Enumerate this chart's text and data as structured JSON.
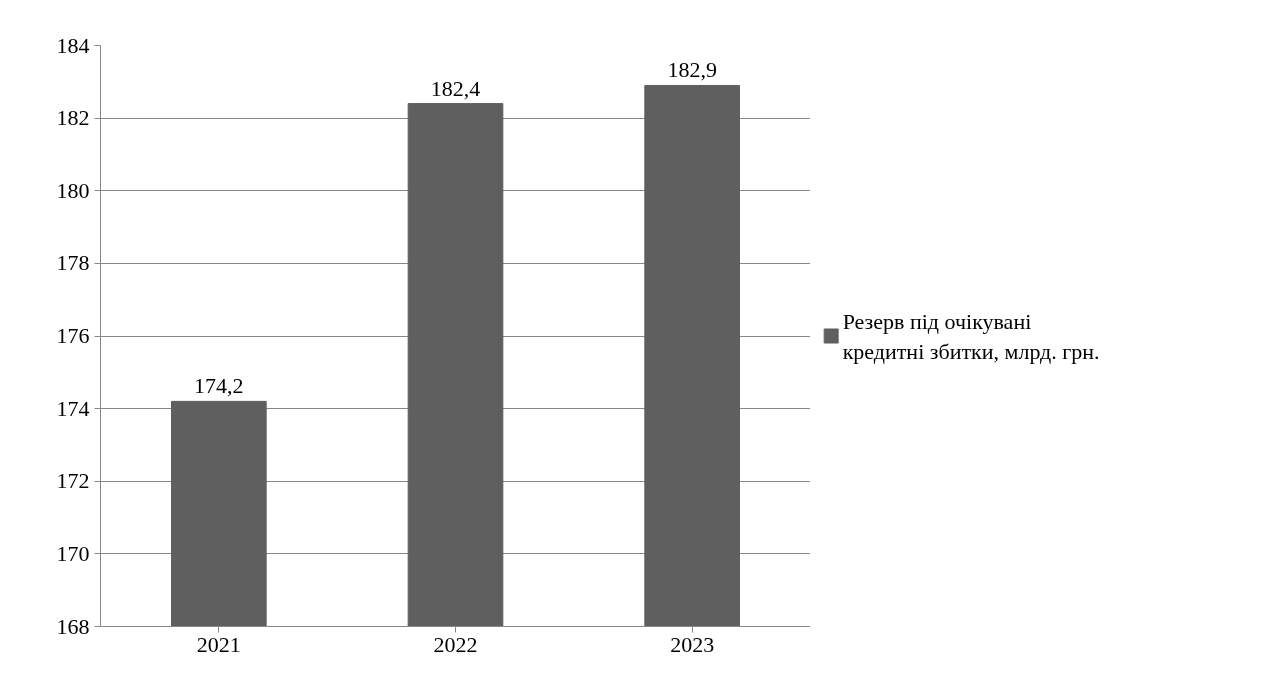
{
  "chart_data": {
    "type": "bar",
    "categories": [
      "2021",
      "2022",
      "2023"
    ],
    "series": [
      {
        "name": "Резерв під очікувані кредитні збитки, млрд. грн.",
        "color": "#5f5f5f",
        "values": [
          174.2,
          182.4,
          182.9
        ],
        "value_labels": [
          "174,2",
          "182,4",
          "182,9"
        ]
      }
    ],
    "ylim": [
      168,
      184
    ],
    "yticks": [
      168,
      170,
      172,
      174,
      176,
      178,
      180,
      182,
      184
    ],
    "grid": "y",
    "legend": "right"
  }
}
